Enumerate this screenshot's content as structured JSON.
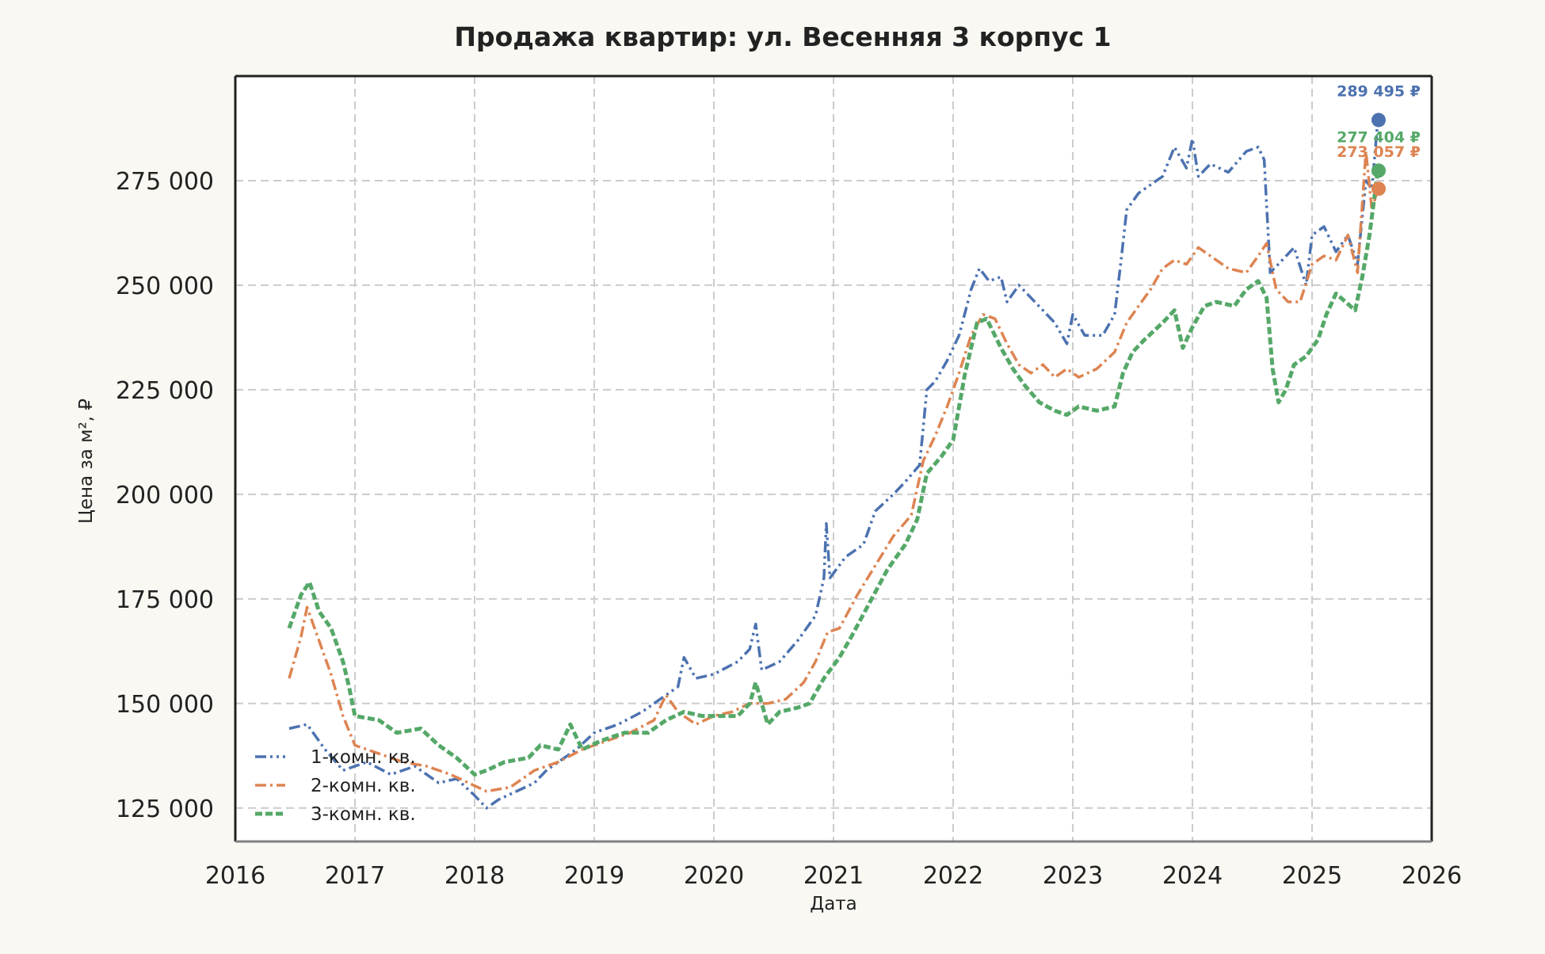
{
  "chart_data": {
    "type": "line",
    "title": "Продажа квартир: ул. Весенняя 3 корпус 1",
    "xlabel": "Дата",
    "ylabel": "Цена за м², ₽",
    "xlim": [
      2016,
      2026
    ],
    "ylim": [
      117000,
      300000
    ],
    "x_ticks": [
      2016,
      2017,
      2018,
      2019,
      2020,
      2021,
      2022,
      2023,
      2024,
      2025,
      2026
    ],
    "x_tick_labels": [
      "2016",
      "2017",
      "2018",
      "2019",
      "2020",
      "2021",
      "2022",
      "2023",
      "2024",
      "2025",
      "2026"
    ],
    "y_ticks": [
      125000,
      150000,
      175000,
      200000,
      225000,
      250000,
      275000
    ],
    "y_tick_labels": [
      "125 000",
      "150 000",
      "175 000",
      "200 000",
      "225 000",
      "250 000",
      "275 000"
    ],
    "grid": true,
    "legend_position": "bottom-left",
    "series": [
      {
        "name": "1-комн. кв.",
        "color": "#4c72b0",
        "dash": "dashdotdot",
        "end_value": 289495,
        "end_label": "289 495 ₽",
        "points": [
          [
            2016.45,
            144000
          ],
          [
            2016.6,
            145000
          ],
          [
            2016.75,
            139000
          ],
          [
            2016.9,
            134000
          ],
          [
            2017.1,
            136000
          ],
          [
            2017.3,
            133000
          ],
          [
            2017.5,
            135000
          ],
          [
            2017.7,
            131000
          ],
          [
            2017.85,
            132000
          ],
          [
            2018.0,
            128000
          ],
          [
            2018.1,
            125000
          ],
          [
            2018.2,
            127000
          ],
          [
            2018.35,
            129000
          ],
          [
            2018.5,
            131000
          ],
          [
            2018.6,
            134000
          ],
          [
            2018.7,
            136000
          ],
          [
            2018.85,
            139000
          ],
          [
            2019.0,
            143000
          ],
          [
            2019.2,
            145000
          ],
          [
            2019.4,
            148000
          ],
          [
            2019.55,
            151000
          ],
          [
            2019.7,
            154000
          ],
          [
            2019.75,
            161000
          ],
          [
            2019.85,
            156000
          ],
          [
            2020.0,
            157000
          ],
          [
            2020.2,
            160000
          ],
          [
            2020.3,
            163000
          ],
          [
            2020.35,
            169000
          ],
          [
            2020.4,
            158000
          ],
          [
            2020.55,
            160000
          ],
          [
            2020.7,
            165000
          ],
          [
            2020.85,
            171000
          ],
          [
            2020.92,
            180000
          ],
          [
            2020.94,
            193000
          ],
          [
            2020.97,
            180000
          ],
          [
            2021.1,
            185000
          ],
          [
            2021.25,
            188000
          ],
          [
            2021.35,
            196000
          ],
          [
            2021.5,
            200000
          ],
          [
            2021.6,
            203000
          ],
          [
            2021.72,
            207000
          ],
          [
            2021.78,
            225000
          ],
          [
            2021.85,
            227000
          ],
          [
            2021.95,
            232000
          ],
          [
            2022.05,
            238000
          ],
          [
            2022.15,
            249000
          ],
          [
            2022.22,
            254000
          ],
          [
            2022.3,
            251000
          ],
          [
            2022.4,
            252000
          ],
          [
            2022.45,
            246000
          ],
          [
            2022.55,
            250000
          ],
          [
            2022.65,
            247000
          ],
          [
            2022.75,
            244000
          ],
          [
            2022.85,
            241000
          ],
          [
            2022.95,
            236000
          ],
          [
            2023.0,
            243000
          ],
          [
            2023.1,
            238000
          ],
          [
            2023.25,
            238000
          ],
          [
            2023.35,
            243000
          ],
          [
            2023.4,
            255000
          ],
          [
            2023.45,
            268000
          ],
          [
            2023.55,
            272000
          ],
          [
            2023.65,
            274000
          ],
          [
            2023.75,
            276000
          ],
          [
            2023.85,
            283000
          ],
          [
            2023.95,
            278000
          ],
          [
            2024.0,
            285000
          ],
          [
            2024.05,
            276000
          ],
          [
            2024.15,
            279000
          ],
          [
            2024.3,
            277000
          ],
          [
            2024.45,
            282000
          ],
          [
            2024.55,
            283000
          ],
          [
            2024.6,
            280000
          ],
          [
            2024.65,
            253000
          ],
          [
            2024.75,
            256000
          ],
          [
            2024.85,
            259000
          ],
          [
            2024.95,
            250000
          ],
          [
            2025.0,
            262000
          ],
          [
            2025.1,
            264000
          ],
          [
            2025.2,
            258000
          ],
          [
            2025.3,
            262000
          ],
          [
            2025.38,
            255000
          ],
          [
            2025.45,
            275000
          ],
          [
            2025.5,
            273000
          ],
          [
            2025.55,
            289495
          ]
        ]
      },
      {
        "name": "2-комн. кв.",
        "color": "#dd8452",
        "dash": "dashdot",
        "end_value": 273057,
        "end_label": "273 057 ₽",
        "points": [
          [
            2016.45,
            156000
          ],
          [
            2016.55,
            166000
          ],
          [
            2016.6,
            173000
          ],
          [
            2016.7,
            165000
          ],
          [
            2016.8,
            157000
          ],
          [
            2016.9,
            147000
          ],
          [
            2017.0,
            140000
          ],
          [
            2017.2,
            138000
          ],
          [
            2017.4,
            136000
          ],
          [
            2017.6,
            135000
          ],
          [
            2017.8,
            133000
          ],
          [
            2017.95,
            131000
          ],
          [
            2018.1,
            129000
          ],
          [
            2018.3,
            130000
          ],
          [
            2018.5,
            134000
          ],
          [
            2018.7,
            136000
          ],
          [
            2018.9,
            139000
          ],
          [
            2019.1,
            141000
          ],
          [
            2019.3,
            143000
          ],
          [
            2019.5,
            146000
          ],
          [
            2019.6,
            152000
          ],
          [
            2019.7,
            148000
          ],
          [
            2019.85,
            145000
          ],
          [
            2020.0,
            147000
          ],
          [
            2020.15,
            148000
          ],
          [
            2020.3,
            150000
          ],
          [
            2020.45,
            150000
          ],
          [
            2020.6,
            151000
          ],
          [
            2020.75,
            155000
          ],
          [
            2020.85,
            160000
          ],
          [
            2020.95,
            167000
          ],
          [
            2021.05,
            168000
          ],
          [
            2021.2,
            176000
          ],
          [
            2021.35,
            183000
          ],
          [
            2021.5,
            190000
          ],
          [
            2021.65,
            195000
          ],
          [
            2021.75,
            208000
          ],
          [
            2021.85,
            214000
          ],
          [
            2021.95,
            221000
          ],
          [
            2022.05,
            229000
          ],
          [
            2022.15,
            238000
          ],
          [
            2022.25,
            243000
          ],
          [
            2022.35,
            242000
          ],
          [
            2022.45,
            236000
          ],
          [
            2022.55,
            231000
          ],
          [
            2022.65,
            229000
          ],
          [
            2022.75,
            231000
          ],
          [
            2022.85,
            228000
          ],
          [
            2022.95,
            230000
          ],
          [
            2023.05,
            228000
          ],
          [
            2023.2,
            230000
          ],
          [
            2023.35,
            234000
          ],
          [
            2023.45,
            241000
          ],
          [
            2023.55,
            245000
          ],
          [
            2023.65,
            249000
          ],
          [
            2023.75,
            254000
          ],
          [
            2023.85,
            256000
          ],
          [
            2023.95,
            255000
          ],
          [
            2024.05,
            259000
          ],
          [
            2024.15,
            257000
          ],
          [
            2024.3,
            254000
          ],
          [
            2024.45,
            253000
          ],
          [
            2024.55,
            257000
          ],
          [
            2024.62,
            260000
          ],
          [
            2024.7,
            249000
          ],
          [
            2024.8,
            246000
          ],
          [
            2024.9,
            246000
          ],
          [
            2025.0,
            255000
          ],
          [
            2025.1,
            257000
          ],
          [
            2025.2,
            256000
          ],
          [
            2025.3,
            262000
          ],
          [
            2025.38,
            253000
          ],
          [
            2025.45,
            282000
          ],
          [
            2025.5,
            268000
          ],
          [
            2025.55,
            273057
          ]
        ]
      },
      {
        "name": "3-комн. кв.",
        "color": "#55a868",
        "dash": "dashed",
        "end_value": 277404,
        "end_label": "277 404 ₽",
        "points": [
          [
            2016.45,
            168000
          ],
          [
            2016.55,
            176000
          ],
          [
            2016.62,
            179000
          ],
          [
            2016.7,
            172000
          ],
          [
            2016.8,
            168000
          ],
          [
            2016.9,
            160000
          ],
          [
            2016.95,
            154000
          ],
          [
            2017.0,
            147000
          ],
          [
            2017.2,
            146000
          ],
          [
            2017.35,
            143000
          ],
          [
            2017.55,
            144000
          ],
          [
            2017.7,
            140000
          ],
          [
            2017.85,
            137000
          ],
          [
            2018.0,
            133000
          ],
          [
            2018.1,
            134000
          ],
          [
            2018.25,
            136000
          ],
          [
            2018.45,
            137000
          ],
          [
            2018.55,
            140000
          ],
          [
            2018.7,
            139000
          ],
          [
            2018.8,
            145000
          ],
          [
            2018.9,
            139000
          ],
          [
            2019.05,
            141000
          ],
          [
            2019.25,
            143000
          ],
          [
            2019.45,
            143000
          ],
          [
            2019.6,
            146000
          ],
          [
            2019.75,
            148000
          ],
          [
            2019.9,
            147000
          ],
          [
            2020.05,
            147000
          ],
          [
            2020.2,
            147000
          ],
          [
            2020.3,
            150000
          ],
          [
            2020.35,
            155000
          ],
          [
            2020.45,
            145000
          ],
          [
            2020.55,
            148000
          ],
          [
            2020.7,
            149000
          ],
          [
            2020.8,
            150000
          ],
          [
            2020.92,
            156000
          ],
          [
            2021.05,
            161000
          ],
          [
            2021.15,
            166000
          ],
          [
            2021.3,
            174000
          ],
          [
            2021.45,
            182000
          ],
          [
            2021.6,
            188000
          ],
          [
            2021.7,
            194000
          ],
          [
            2021.78,
            205000
          ],
          [
            2021.9,
            209000
          ],
          [
            2022.0,
            213000
          ],
          [
            2022.1,
            229000
          ],
          [
            2022.2,
            241000
          ],
          [
            2022.28,
            242000
          ],
          [
            2022.4,
            235000
          ],
          [
            2022.5,
            230000
          ],
          [
            2022.6,
            226000
          ],
          [
            2022.72,
            222000
          ],
          [
            2022.85,
            220000
          ],
          [
            2022.95,
            219000
          ],
          [
            2023.05,
            221000
          ],
          [
            2023.2,
            220000
          ],
          [
            2023.35,
            221000
          ],
          [
            2023.42,
            229000
          ],
          [
            2023.5,
            234000
          ],
          [
            2023.6,
            237000
          ],
          [
            2023.75,
            241000
          ],
          [
            2023.85,
            244000
          ],
          [
            2023.92,
            235000
          ],
          [
            2024.0,
            240000
          ],
          [
            2024.1,
            245000
          ],
          [
            2024.2,
            246000
          ],
          [
            2024.35,
            245000
          ],
          [
            2024.45,
            249000
          ],
          [
            2024.55,
            251000
          ],
          [
            2024.62,
            247000
          ],
          [
            2024.67,
            230000
          ],
          [
            2024.72,
            222000
          ],
          [
            2024.78,
            225000
          ],
          [
            2024.85,
            231000
          ],
          [
            2024.95,
            233000
          ],
          [
            2025.05,
            237000
          ],
          [
            2025.12,
            243000
          ],
          [
            2025.2,
            248000
          ],
          [
            2025.28,
            246000
          ],
          [
            2025.36,
            244000
          ],
          [
            2025.42,
            252000
          ],
          [
            2025.48,
            262000
          ],
          [
            2025.55,
            277404
          ]
        ]
      }
    ]
  }
}
